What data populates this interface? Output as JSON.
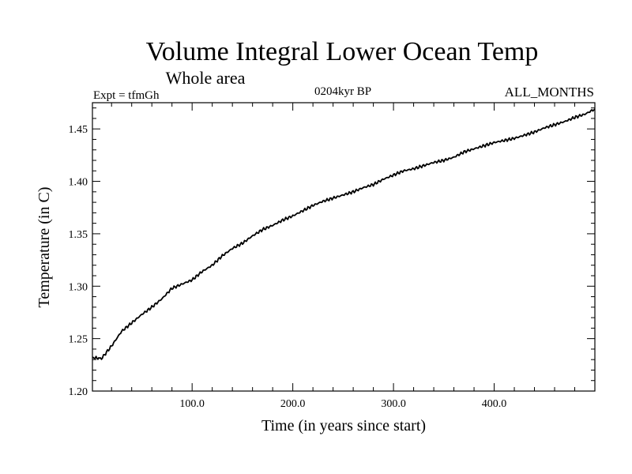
{
  "chart_data": {
    "type": "line",
    "title": "Volume Integral Lower Ocean Temp",
    "subtitle": "Whole area",
    "left_label": "Expt = tfmGh",
    "center_label": "0204kyr BP",
    "right_label": "ALL_MONTHS",
    "xlabel": "Time (in years since start)",
    "ylabel": "Temperature (in C)",
    "xlim": [
      1,
      500
    ],
    "ylim": [
      1.2,
      1.475
    ],
    "x_ticks": [
      100,
      200,
      300,
      400
    ],
    "x_tick_labels": [
      "100.0",
      "200.0",
      "300.0",
      "400.0"
    ],
    "y_ticks": [
      1.2,
      1.25,
      1.3,
      1.35,
      1.4,
      1.45
    ],
    "y_tick_labels": [
      "1.20",
      "1.25",
      "1.30",
      "1.35",
      "1.40",
      "1.45"
    ],
    "grid": false,
    "series": [
      {
        "name": "Volume integral lower ocean temperature",
        "color": "#000000",
        "x": [
          1,
          10,
          20,
          30,
          40,
          50,
          60,
          70,
          80,
          90,
          100,
          110,
          120,
          130,
          140,
          150,
          160,
          170,
          180,
          190,
          200,
          210,
          220,
          230,
          240,
          250,
          260,
          270,
          280,
          290,
          300,
          310,
          320,
          330,
          340,
          350,
          360,
          370,
          380,
          390,
          400,
          410,
          420,
          430,
          440,
          450,
          460,
          470,
          480,
          490,
          500
        ],
        "y": [
          1.232,
          1.231,
          1.243,
          1.257,
          1.265,
          1.273,
          1.28,
          1.288,
          1.298,
          1.302,
          1.306,
          1.314,
          1.32,
          1.329,
          1.336,
          1.341,
          1.348,
          1.354,
          1.358,
          1.363,
          1.367,
          1.372,
          1.377,
          1.381,
          1.384,
          1.387,
          1.39,
          1.394,
          1.397,
          1.402,
          1.406,
          1.41,
          1.412,
          1.415,
          1.418,
          1.42,
          1.423,
          1.428,
          1.431,
          1.434,
          1.437,
          1.439,
          1.441,
          1.444,
          1.447,
          1.451,
          1.454,
          1.457,
          1.461,
          1.464,
          1.469
        ]
      }
    ]
  }
}
